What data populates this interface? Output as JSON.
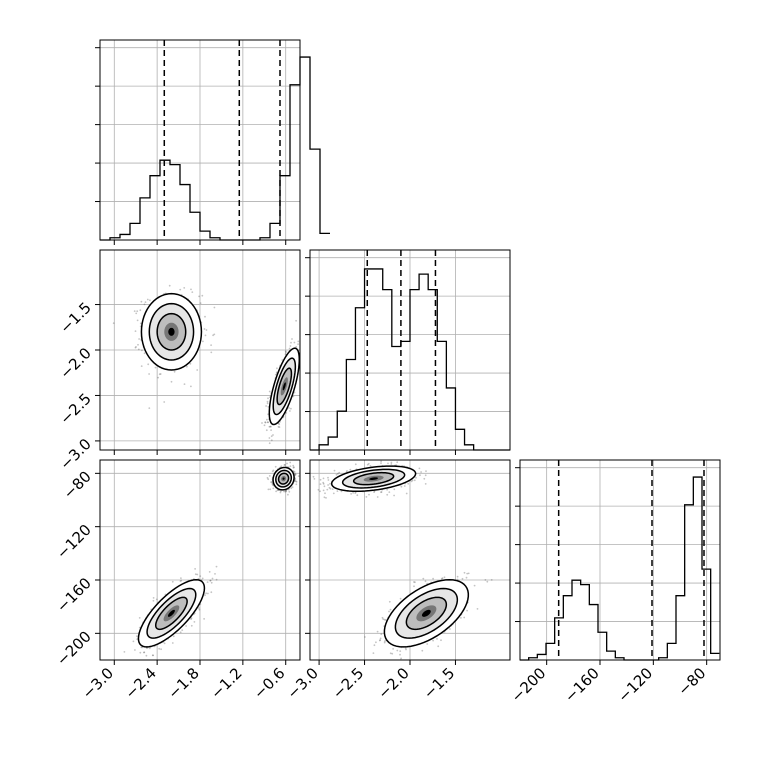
{
  "chart_data": [
    {
      "id": "hist_x",
      "type": "bar",
      "title": "",
      "xlim": [
        -3.2,
        -0.4
      ],
      "bins": {
        "start": -3.2,
        "width": 0.14,
        "counts": [
          0,
          2,
          5,
          15,
          38,
          58,
          72,
          68,
          50,
          25,
          8,
          2,
          0,
          0,
          0,
          0,
          2,
          15,
          58,
          140,
          165,
          82,
          6
        ]
      },
      "quantile_lines": [
        -2.3,
        -1.25,
        -0.68
      ],
      "ymax": 175,
      "xticks": [
        -3.0,
        -2.4,
        -1.8,
        -1.2,
        -0.6
      ],
      "xticklabels": [
        "−3.0",
        "−2.4",
        "−1.8",
        "−1.2",
        "−0.6"
      ]
    },
    {
      "id": "hist_y",
      "type": "bar",
      "title": "",
      "xlim": [
        -3.1,
        -0.9
      ],
      "bins": {
        "start": -3.1,
        "width": 0.1,
        "counts": [
          0,
          2,
          5,
          15,
          35,
          55,
          70,
          70,
          62,
          40,
          42,
          62,
          68,
          62,
          42,
          24,
          8,
          2,
          0,
          0,
          0,
          0
        ]
      },
      "quantile_lines": [
        -2.47,
        -2.1,
        -1.72
      ],
      "ymax": 75,
      "xticks": [
        -3.0,
        -2.5,
        -2.0,
        -1.5
      ],
      "xticklabels": [
        "−3.0",
        "−2.5",
        "−2.0",
        "−1.5"
      ],
      "yticks": [
        -3.0,
        -2.5,
        -2.0,
        -1.5
      ],
      "yticklabels": [
        "−3.0",
        "−2.5",
        "−2.0",
        "−1.5"
      ]
    },
    {
      "id": "hist_z",
      "type": "bar",
      "title": "",
      "xlim": [
        -220,
        -70
      ],
      "bins": {
        "start": -220,
        "width": 6.5,
        "counts": [
          0,
          2,
          5,
          15,
          38,
          58,
          72,
          68,
          50,
          25,
          8,
          2,
          0,
          0,
          0,
          0,
          2,
          15,
          58,
          140,
          165,
          82,
          6
        ]
      },
      "quantile_lines": [
        -191,
        -121,
        -82
      ],
      "ymax": 175,
      "xticks": [
        -200,
        -160,
        -120,
        -80
      ],
      "xticklabels": [
        "−200",
        "−160",
        "−120",
        "−80"
      ],
      "yticks": [
        -200,
        -160,
        -120,
        -80
      ],
      "yticklabels": [
        "−200",
        "−160",
        "−120",
        "−80"
      ]
    },
    {
      "id": "scatter_xy",
      "type": "scatter",
      "title": "",
      "xlim": [
        -3.2,
        -0.4
      ],
      "ylim": [
        -3.1,
        -0.9
      ],
      "blobs": [
        {
          "cx": -2.2,
          "cy": -1.8,
          "sx": 0.2,
          "sy": 0.2,
          "rho": 0.0,
          "n": 700
        },
        {
          "cx": -0.62,
          "cy": -2.4,
          "sx": 0.1,
          "sy": 0.2,
          "rho": 0.7,
          "n": 700
        }
      ]
    },
    {
      "id": "scatter_xz",
      "type": "scatter",
      "title": "",
      "xlim": [
        -3.2,
        -0.4
      ],
      "ylim": [
        -220,
        -70
      ],
      "blobs": [
        {
          "cx": -2.2,
          "cy": -185,
          "sx": 0.22,
          "sy": 12,
          "rho": 0.75,
          "n": 700
        },
        {
          "cx": -0.63,
          "cy": -84,
          "sx": 0.07,
          "sy": 4,
          "rho": 0.1,
          "n": 700
        }
      ]
    },
    {
      "id": "scatter_yz",
      "type": "scatter",
      "title": "",
      "xlim": [
        -3.1,
        -0.9
      ],
      "ylim": [
        -220,
        -70
      ],
      "blobs": [
        {
          "cx": -2.4,
          "cy": -84,
          "sx": 0.22,
          "sy": 4.5,
          "rho": 0.4,
          "n": 700
        },
        {
          "cx": -1.82,
          "cy": -185,
          "sx": 0.22,
          "sy": 12,
          "rho": 0.55,
          "n": 700
        }
      ]
    }
  ]
}
